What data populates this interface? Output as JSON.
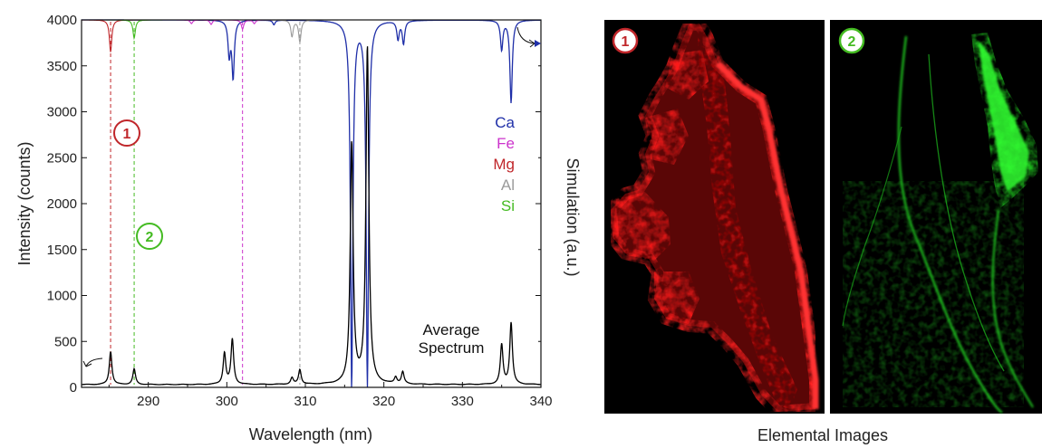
{
  "chart_data": {
    "type": "line",
    "xlabel": "Wavelength (nm)",
    "ylabel": "Intensity (counts)",
    "y2label": "Simulation (a.u.)",
    "xlim": [
      281.5,
      340
    ],
    "ylim": [
      0,
      4000
    ],
    "xticks": [
      290,
      300,
      310,
      320,
      330,
      340
    ],
    "yticks": [
      0,
      500,
      1000,
      1500,
      2000,
      2500,
      3000,
      3500,
      4000
    ],
    "grid": false,
    "legend_position": "right",
    "average_spectrum": {
      "label_line1": "Average",
      "label_line2": "Spectrum",
      "color": "#000000",
      "baseline": 30,
      "peaks": [
        {
          "x": 285.2,
          "y": 390
        },
        {
          "x": 288.2,
          "y": 200
        },
        {
          "x": 299.7,
          "y": 370
        },
        {
          "x": 300.7,
          "y": 520
        },
        {
          "x": 308.3,
          "y": 100
        },
        {
          "x": 309.3,
          "y": 190
        },
        {
          "x": 315.9,
          "y": 2650
        },
        {
          "x": 317.9,
          "y": 3700
        },
        {
          "x": 321.5,
          "y": 100
        },
        {
          "x": 322.4,
          "y": 160
        },
        {
          "x": 335.0,
          "y": 460
        },
        {
          "x": 336.2,
          "y": 700
        }
      ]
    },
    "simulation": [
      {
        "name": "Ca",
        "color": "#1f2fa8",
        "lines": [
          {
            "x": 300.3,
            "y": 3630
          },
          {
            "x": 300.8,
            "y": 3380
          },
          {
            "x": 306.0,
            "y": 3950
          },
          {
            "x": 315.9,
            "y": 0
          },
          {
            "x": 317.9,
            "y": 0
          },
          {
            "x": 321.8,
            "y": 3800
          },
          {
            "x": 322.5,
            "y": 3750
          },
          {
            "x": 335.0,
            "y": 3680
          },
          {
            "x": 336.2,
            "y": 3100
          }
        ]
      },
      {
        "name": "Fe",
        "color": "#cc33cc",
        "lines": [
          {
            "x": 295.5,
            "y": 3960
          },
          {
            "x": 298.0,
            "y": 3950
          },
          {
            "x": 302.0,
            "y": 3900
          },
          {
            "x": 303.5,
            "y": 3960
          }
        ]
      },
      {
        "name": "Mg",
        "color": "#c0262a",
        "lines": [
          {
            "x": 285.2,
            "y": 3650
          }
        ]
      },
      {
        "name": "Al",
        "color": "#9a9a9a",
        "lines": [
          {
            "x": 308.3,
            "y": 3820
          },
          {
            "x": 309.3,
            "y": 3760
          }
        ]
      },
      {
        "name": "Si",
        "color": "#44bb22",
        "lines": [
          {
            "x": 288.2,
            "y": 3800
          }
        ]
      }
    ],
    "markers": [
      {
        "label": "1",
        "x": 285.2,
        "color": "#c0262a"
      },
      {
        "label": "2",
        "x": 288.2,
        "color": "#44bb22"
      }
    ],
    "guide_lines": [
      {
        "x": 285.2,
        "color": "#c0262a"
      },
      {
        "x": 288.2,
        "color": "#44bb22"
      },
      {
        "x": 302.0,
        "color": "#cc33cc"
      },
      {
        "x": 309.3,
        "color": "#9a9a9a"
      }
    ]
  },
  "elemental_images": {
    "caption": "Elemental Images",
    "panels": [
      {
        "label": "1",
        "color": "#e01010",
        "ring": "#c0262a",
        "element": "Mg"
      },
      {
        "label": "2",
        "color": "#22dd22",
        "ring": "#44bb22",
        "element": "Si"
      }
    ]
  }
}
